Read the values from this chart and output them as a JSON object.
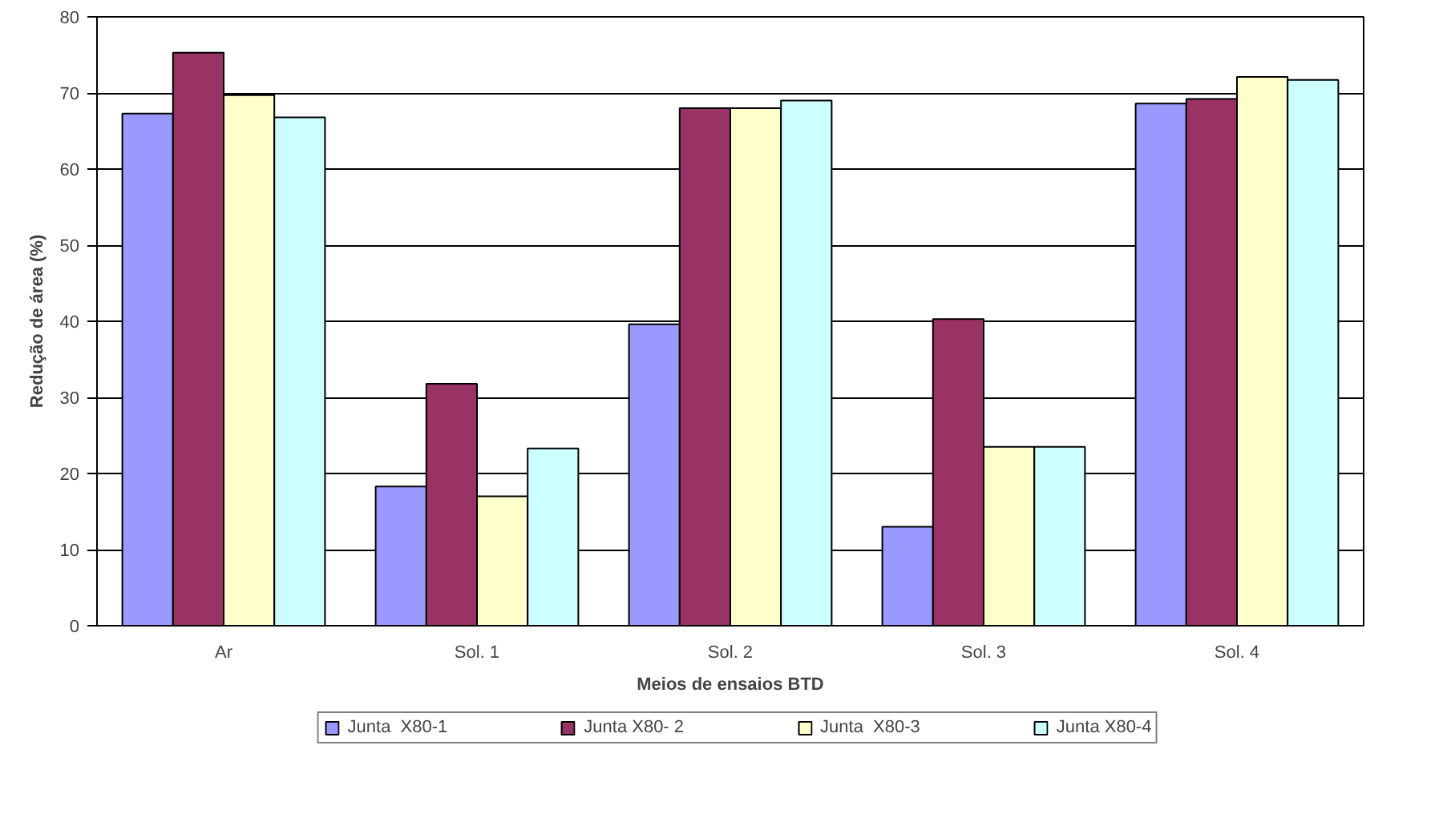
{
  "chart_data": {
    "type": "bar",
    "xlabel": "Meios de ensaios BTD",
    "ylabel": "Redução de área (%)",
    "categories": [
      "Ar",
      "Sol. 1",
      "Sol. 2",
      "Sol. 3",
      "Sol. 4"
    ],
    "series": [
      {
        "name": "Junta  X80-1",
        "color": "#9999ff",
        "values": [
          67.3,
          18.3,
          39.6,
          13.0,
          68.6
        ]
      },
      {
        "name": "Junta X80- 2",
        "color": "#993366",
        "values": [
          75.3,
          31.8,
          68.0,
          40.3,
          69.2
        ]
      },
      {
        "name": "Junta  X80-3",
        "color": "#ffffcc",
        "values": [
          69.7,
          17.0,
          68.0,
          23.5,
          72.1
        ]
      },
      {
        "name": "Junta X80-4",
        "color": "#ccffff",
        "values": [
          66.8,
          23.3,
          69.0,
          23.5,
          71.7
        ]
      }
    ],
    "ylim": [
      0,
      80
    ],
    "yticks": [
      0,
      10,
      20,
      30,
      40,
      50,
      60,
      70,
      80
    ],
    "grid": "y",
    "legend": "bottom"
  }
}
